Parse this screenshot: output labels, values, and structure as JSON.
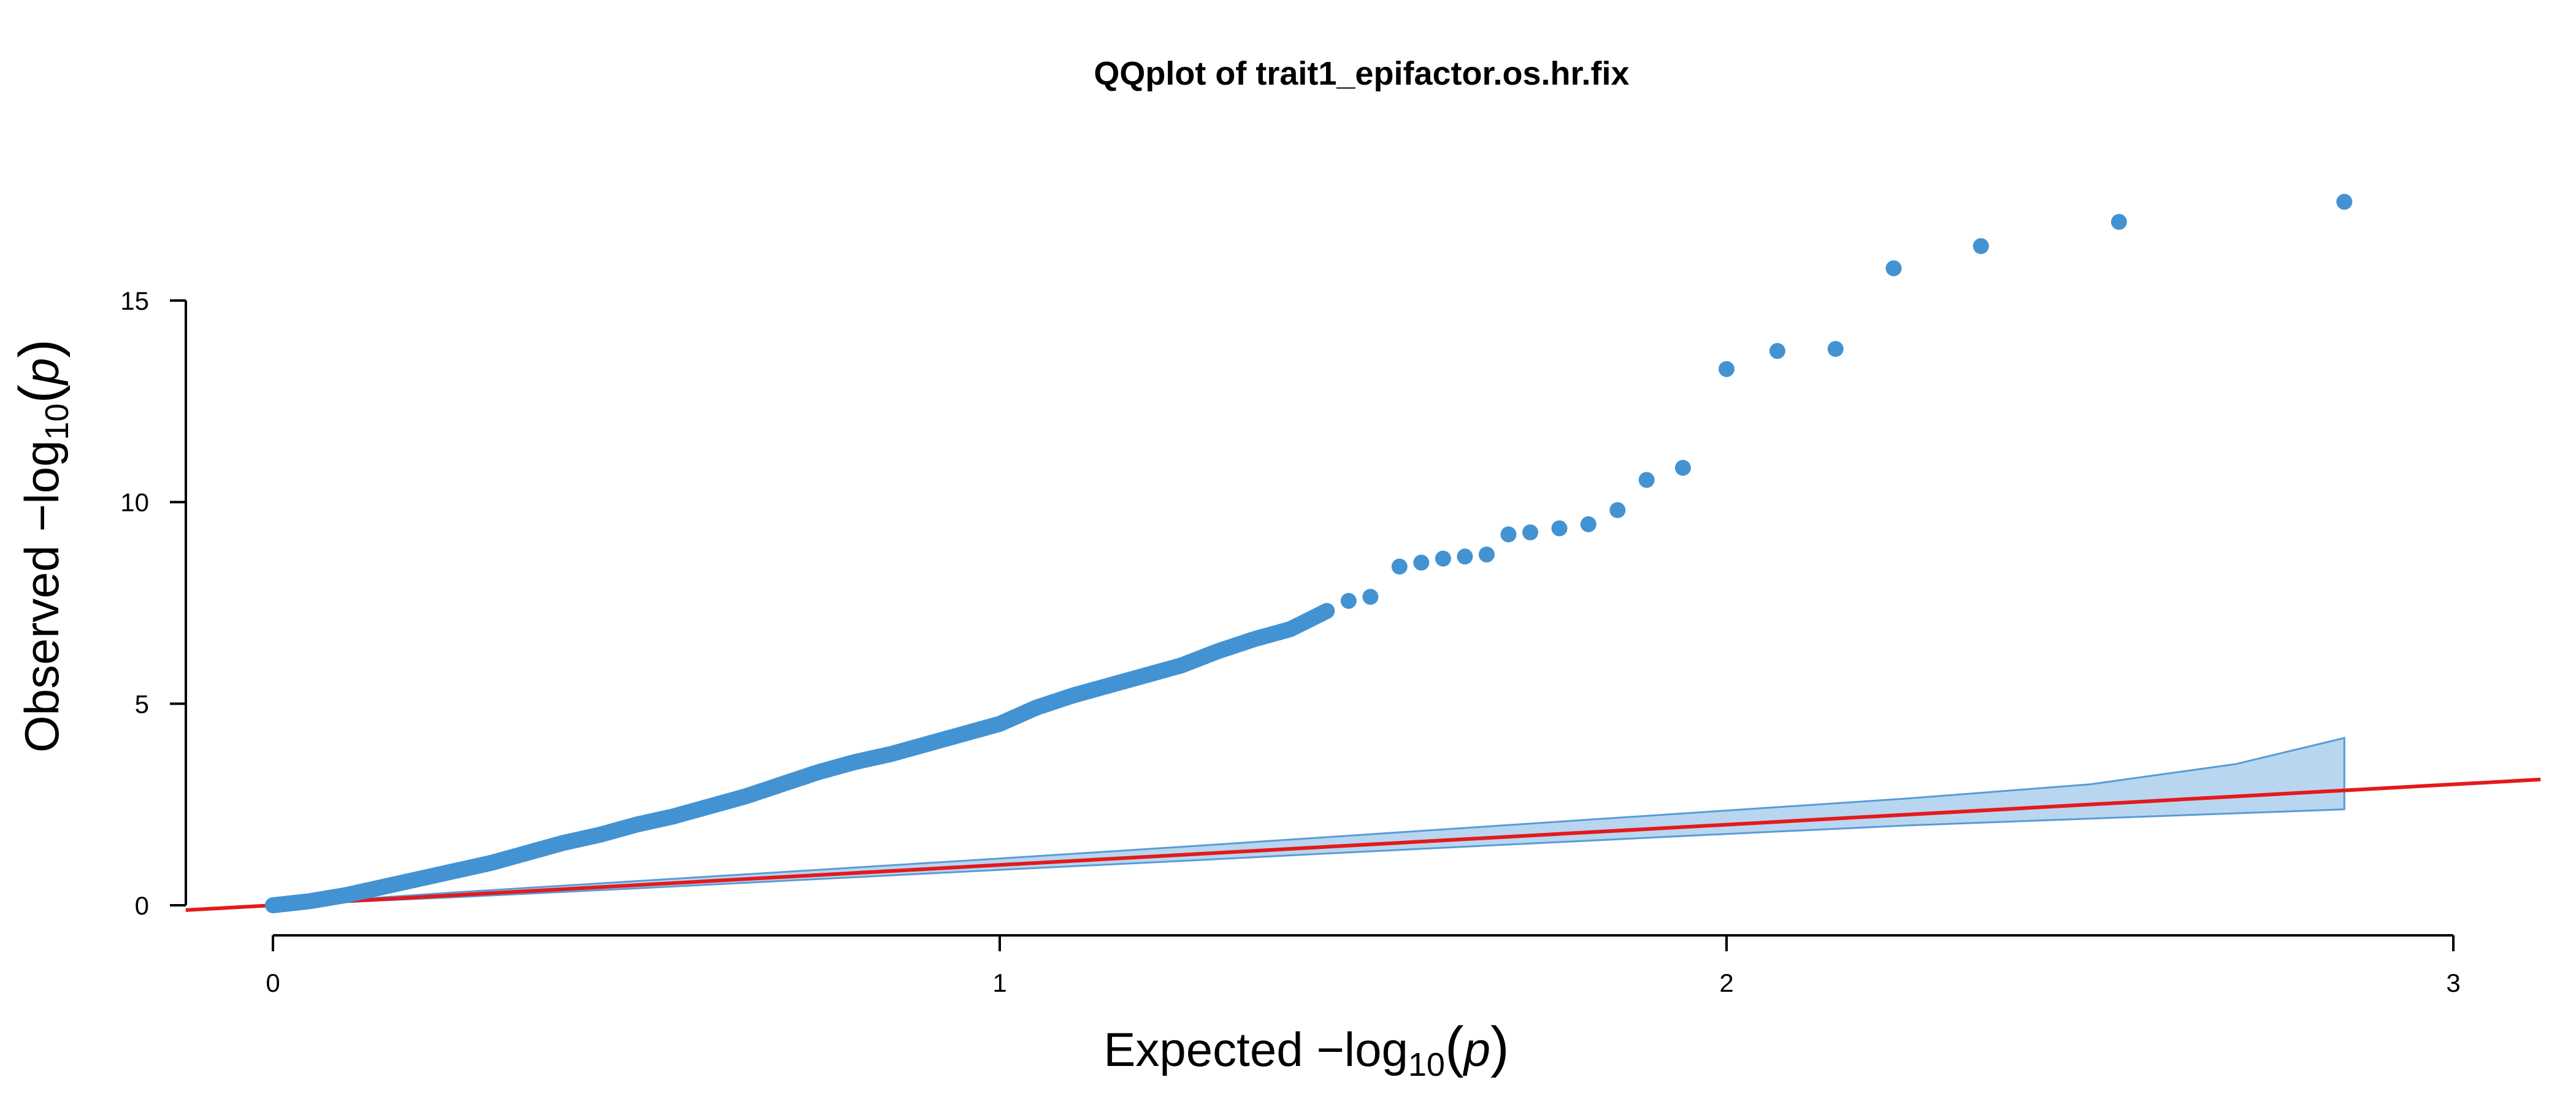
{
  "chart_data": {
    "type": "scatter",
    "title": "QQplot of trait1_epifactor.os.hr.fix",
    "xlabel": "Expected  −log10(p)",
    "ylabel": "Observed  −log10(p)",
    "xlabel_parts": {
      "prefix": "Expected  −log",
      "sub": "10",
      "lparen": "(",
      "var": "p",
      "rparen": ")"
    },
    "ylabel_parts": {
      "prefix": "Observed  −log",
      "sub": "10",
      "lparen": "(",
      "var": "p",
      "rparen": ")"
    },
    "xlim": [
      -0.12,
      3.12
    ],
    "ylim": [
      -0.15,
      17.5
    ],
    "x_ticks": [
      0,
      1,
      2,
      3
    ],
    "x_tick_labels": [
      "0",
      "1",
      "2",
      "3"
    ],
    "y_ticks": [
      0,
      5,
      10,
      15
    ],
    "y_tick_labels": [
      "0",
      "5",
      "10",
      "15"
    ],
    "colors": {
      "points": "#4393d3",
      "band_fill": "#b8d6f0",
      "band_edge": "#5b9bd5",
      "ref_line": "#e31a1c"
    },
    "reference_line": {
      "slope": 1,
      "intercept": 0
    },
    "confidence_band": {
      "x": [
        0,
        0.25,
        0.5,
        0.75,
        1.0,
        1.25,
        1.5,
        1.75,
        2.0,
        2.25,
        2.5,
        2.7,
        2.85
      ],
      "upper": [
        0.01,
        0.32,
        0.6,
        0.88,
        1.16,
        1.45,
        1.75,
        2.05,
        2.35,
        2.65,
        3.0,
        3.5,
        4.15
      ],
      "lower": [
        0.0,
        0.2,
        0.42,
        0.65,
        0.88,
        1.1,
        1.33,
        1.55,
        1.77,
        1.98,
        2.15,
        2.28,
        2.38
      ]
    },
    "curve_points": {
      "x": [
        0,
        0.05,
        0.1,
        0.15,
        0.2,
        0.25,
        0.3,
        0.35,
        0.4,
        0.45,
        0.5,
        0.55,
        0.6,
        0.65,
        0.7,
        0.75,
        0.8,
        0.85,
        0.9,
        0.95,
        1.0,
        1.05,
        1.1,
        1.15,
        1.2,
        1.25,
        1.3,
        1.35,
        1.4,
        1.45
      ],
      "y": [
        0.0,
        0.1,
        0.25,
        0.45,
        0.65,
        0.85,
        1.05,
        1.3,
        1.55,
        1.75,
        2.0,
        2.2,
        2.45,
        2.7,
        3.0,
        3.3,
        3.55,
        3.75,
        4.0,
        4.25,
        4.5,
        4.9,
        5.2,
        5.45,
        5.7,
        5.95,
        6.3,
        6.6,
        6.85,
        7.3
      ]
    },
    "extreme_points": {
      "x": [
        1.48,
        1.51,
        1.55,
        1.58,
        1.61,
        1.64,
        1.67,
        1.7,
        1.73,
        1.77,
        1.81,
        1.85,
        1.89,
        1.94,
        2.0,
        2.07,
        2.15,
        2.23,
        2.35,
        2.54,
        2.85
      ],
      "y": [
        7.55,
        7.65,
        8.4,
        8.5,
        8.6,
        8.65,
        8.7,
        9.2,
        9.25,
        9.35,
        9.45,
        9.8,
        10.55,
        10.85,
        13.3,
        13.75,
        13.8,
        15.8,
        16.35,
        16.95,
        17.45
      ]
    }
  }
}
